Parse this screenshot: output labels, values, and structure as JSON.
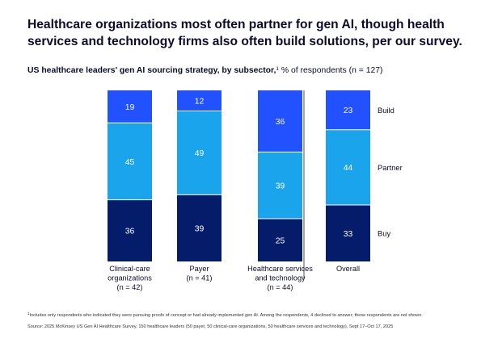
{
  "headline": "Healthcare organizations most often partner for gen AI, though health services and technology firms also often build solutions, per our survey.",
  "subtitle": {
    "bold": "US healthcare leaders' gen AI sourcing strategy, by subsector,",
    "marker": "1",
    "rest": " % of respondents (n = 127)"
  },
  "footnotes": {
    "note1_marker": "1",
    "note1": "Includes only respondents who indicated they were pursuing proofs of concept or had already implemented gen AI. Among the respondents, 4 declined to answer; these respondents are not shown.",
    "source": "Source: 2025 McKinsey US Gen AI Healthcare Survey, 150 healthcare leaders (50 payer, 50 clinical-care organizations, 50 healthcare services and technology), Sept 17–Oct 17, 2025"
  },
  "chart_data": {
    "type": "bar",
    "stacked": true,
    "categories": [
      [
        "Clinical-care",
        "organizations",
        "(n = 42)"
      ],
      [
        "Payer",
        "(n = 41)"
      ],
      [
        "Healthcare services",
        "and technology",
        "(n = 44)"
      ],
      [
        "Overall"
      ]
    ],
    "series": [
      {
        "name": "Buy",
        "color": "#051c6b",
        "values": [
          36,
          39,
          25,
          33
        ]
      },
      {
        "name": "Partner",
        "color": "#1aa4ec",
        "values": [
          45,
          49,
          39,
          44
        ]
      },
      {
        "name": "Build",
        "color": "#2251ff",
        "values": [
          19,
          12,
          36,
          23
        ]
      }
    ],
    "ylim": [
      0,
      100
    ],
    "label_color": "#ffffff",
    "legend": "inline right of last bar"
  }
}
